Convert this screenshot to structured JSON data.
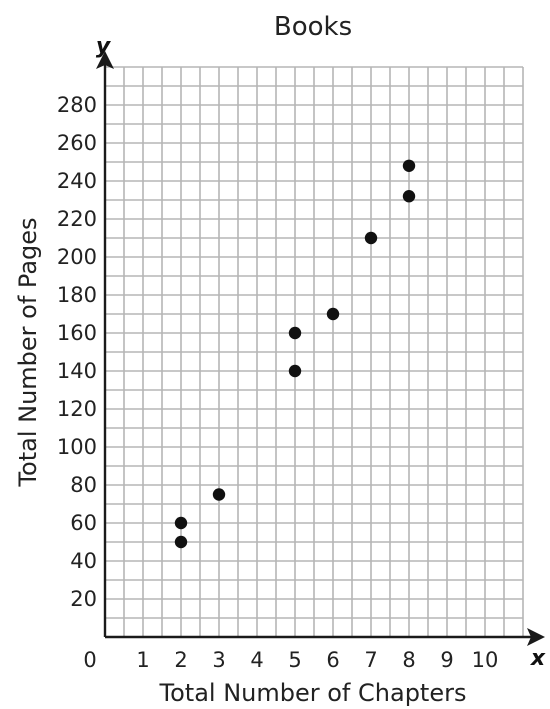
{
  "chart_data": {
    "type": "scatter",
    "title": "Books",
    "xlabel": "Total Number of Chapters",
    "ylabel": "Total Number of Pages",
    "x_axis_letter": "x",
    "y_axis_letter": "y",
    "origin_label": "0",
    "xlim": [
      0,
      11
    ],
    "ylim": [
      0,
      300
    ],
    "x_ticks": [
      1,
      2,
      3,
      4,
      5,
      6,
      7,
      8,
      9,
      10
    ],
    "x_tick_labels": [
      "1",
      "2",
      "3",
      "4",
      "5",
      "6",
      "7",
      "8",
      "9",
      "10"
    ],
    "y_ticks": [
      20,
      40,
      60,
      80,
      100,
      120,
      140,
      160,
      180,
      200,
      220,
      240,
      260,
      280
    ],
    "y_tick_labels": [
      "20",
      "40",
      "60",
      "80",
      "100",
      "120",
      "140",
      "160",
      "180",
      "200",
      "220",
      "240",
      "260",
      "280"
    ],
    "grid": true,
    "points": [
      {
        "x": 2,
        "y": 50
      },
      {
        "x": 2,
        "y": 60
      },
      {
        "x": 3,
        "y": 75
      },
      {
        "x": 5,
        "y": 140
      },
      {
        "x": 5,
        "y": 160
      },
      {
        "x": 6,
        "y": 170
      },
      {
        "x": 7,
        "y": 210
      },
      {
        "x": 8,
        "y": 232
      },
      {
        "x": 8,
        "y": 248
      }
    ],
    "colors": {
      "grid": "#b5b5b5",
      "axis": "#1a1a1a",
      "point": "#111111"
    }
  }
}
